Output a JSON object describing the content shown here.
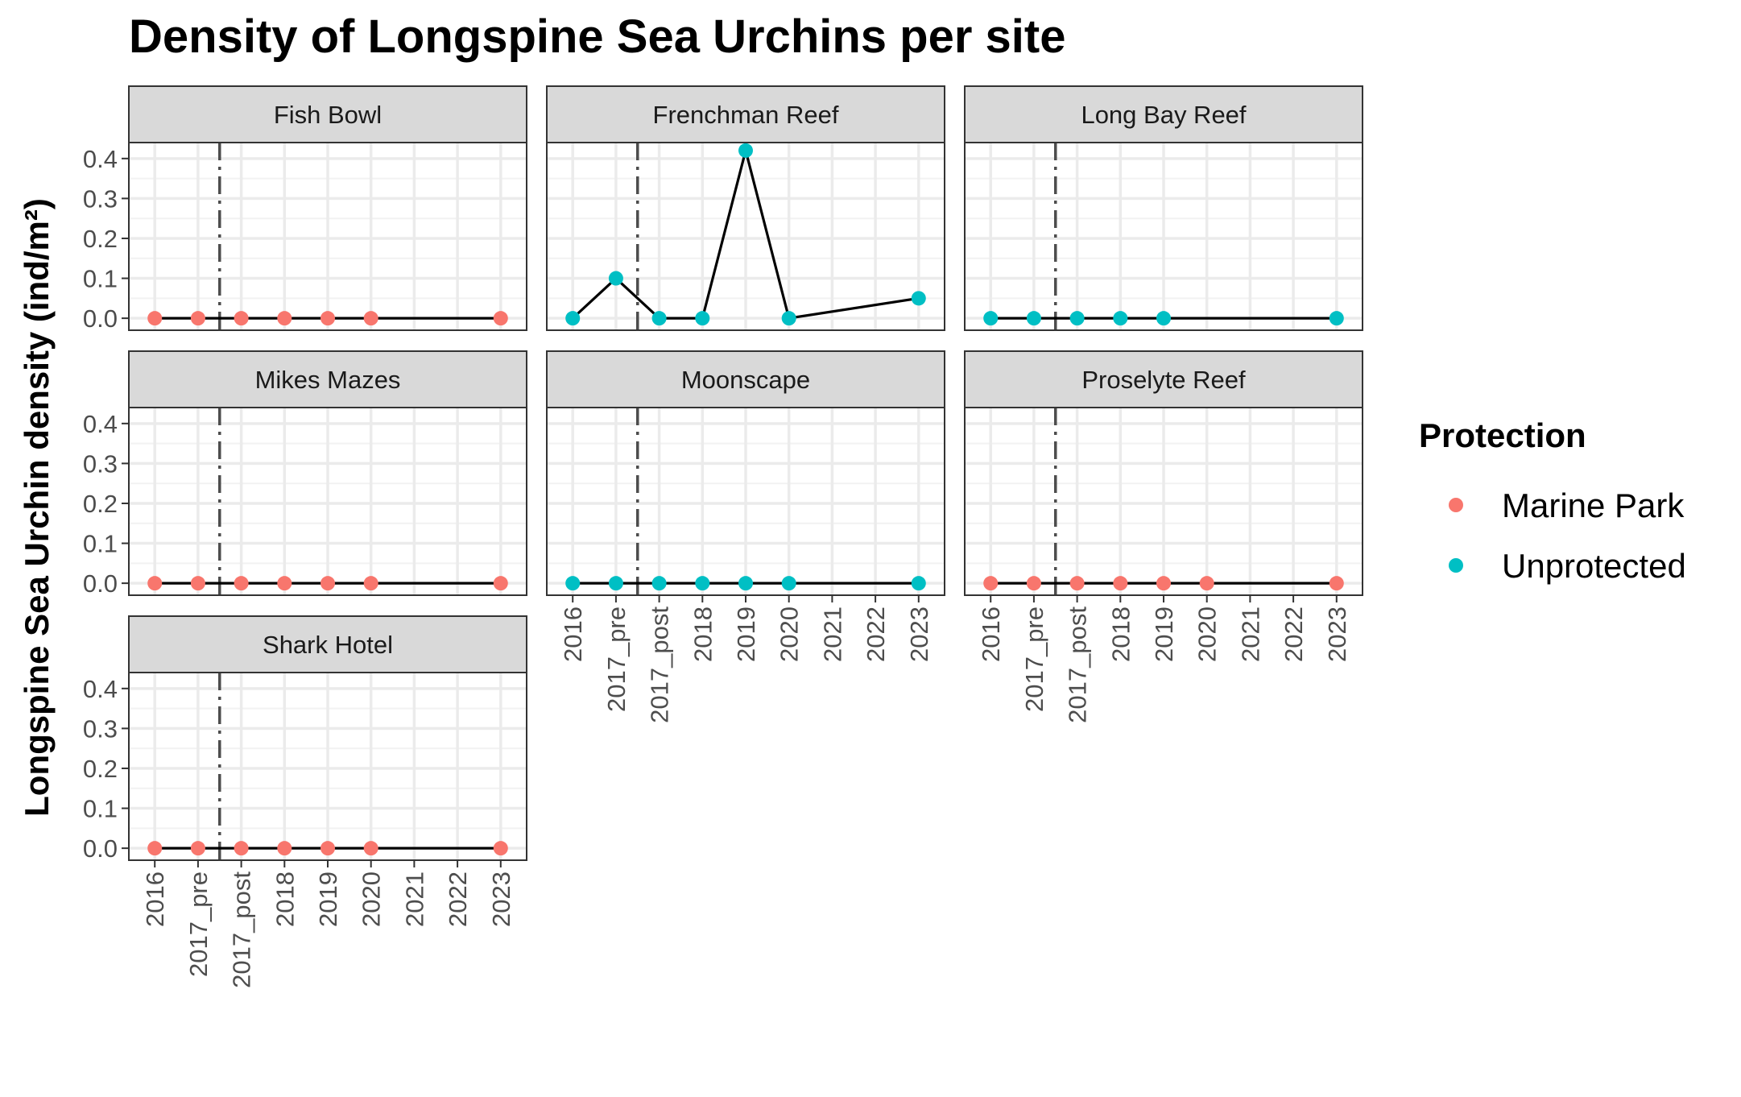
{
  "chart_data": {
    "type": "line",
    "title": "Density of Longspine Sea Urchins per site",
    "ylabel": "Longspine Sea Urchin density (ind/m²)",
    "xlabel": "",
    "categories": [
      "2016",
      "2017_pre",
      "2017_post",
      "2018",
      "2019",
      "2020",
      "2021",
      "2022",
      "2023"
    ],
    "ylim": [
      -0.03,
      0.44
    ],
    "yticks": [
      0.0,
      0.1,
      0.2,
      0.3,
      0.4
    ],
    "ytick_labels": [
      "0.0",
      "0.1",
      "0.2",
      "0.3",
      "0.4"
    ],
    "vline_between": [
      "2017_pre",
      "2017_post"
    ],
    "grid": true,
    "legend": {
      "title": "Protection",
      "position": "right",
      "entries": [
        {
          "label": "Marine Park",
          "color": "#F8766D"
        },
        {
          "label": "Unprotected",
          "color": "#00BFC4"
        }
      ]
    },
    "panels": [
      {
        "site": "Fish Bowl",
        "protection": "Marine Park",
        "x": [
          "2016",
          "2017_pre",
          "2017_post",
          "2018",
          "2019",
          "2020",
          "2023"
        ],
        "y": [
          0,
          0,
          0,
          0,
          0,
          0,
          0
        ]
      },
      {
        "site": "Frenchman Reef",
        "protection": "Unprotected",
        "x": [
          "2016",
          "2017_pre",
          "2017_post",
          "2018",
          "2019",
          "2020",
          "2023"
        ],
        "y": [
          0,
          0.1,
          0,
          0,
          0.42,
          0,
          0.05
        ]
      },
      {
        "site": "Long Bay Reef",
        "protection": "Unprotected",
        "x": [
          "2016",
          "2017_pre",
          "2017_post",
          "2018",
          "2019",
          "2023"
        ],
        "y": [
          0,
          0,
          0,
          0,
          0,
          0
        ]
      },
      {
        "site": "Mikes Mazes",
        "protection": "Marine Park",
        "x": [
          "2016",
          "2017_pre",
          "2017_post",
          "2018",
          "2019",
          "2020",
          "2023"
        ],
        "y": [
          0,
          0,
          0,
          0,
          0,
          0,
          0
        ]
      },
      {
        "site": "Moonscape",
        "protection": "Unprotected",
        "x": [
          "2016",
          "2017_pre",
          "2017_post",
          "2018",
          "2019",
          "2020",
          "2023"
        ],
        "y": [
          0,
          0,
          0,
          0,
          0,
          0,
          0
        ]
      },
      {
        "site": "Proselyte Reef",
        "protection": "Marine Park",
        "x": [
          "2016",
          "2017_pre",
          "2017_post",
          "2018",
          "2019",
          "2020",
          "2023"
        ],
        "y": [
          0,
          0,
          0,
          0,
          0,
          0,
          0
        ]
      },
      {
        "site": "Shark Hotel",
        "protection": "Marine Park",
        "x": [
          "2016",
          "2017_pre",
          "2017_post",
          "2018",
          "2019",
          "2020",
          "2023"
        ],
        "y": [
          0,
          0,
          0,
          0,
          0,
          0,
          0
        ]
      }
    ]
  }
}
